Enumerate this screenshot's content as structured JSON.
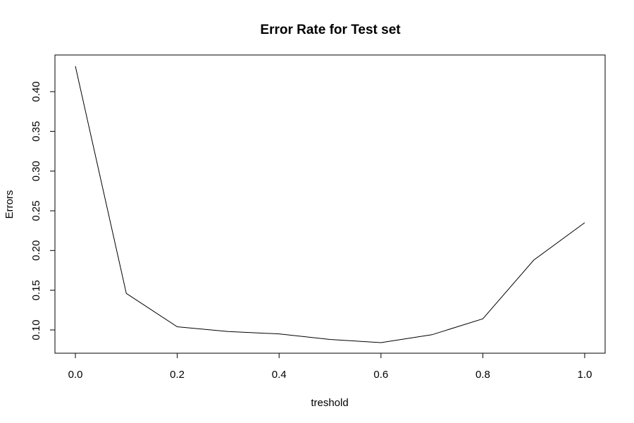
{
  "chart_data": {
    "type": "line",
    "title": "Error Rate for Test set",
    "xlabel": "treshold",
    "ylabel": "Errors",
    "x": [
      0.0,
      0.1,
      0.2,
      0.3,
      0.4,
      0.5,
      0.6,
      0.7,
      0.8,
      0.9,
      1.0
    ],
    "series": [
      {
        "values": [
          0.432,
          0.146,
          0.104,
          0.098,
          0.095,
          0.088,
          0.084,
          0.094,
          0.114,
          0.188,
          0.235
        ]
      }
    ],
    "xlim": [
      0.0,
      1.0
    ],
    "ylim": [
      0.1,
      0.4
    ],
    "x_ticks": [
      "0.0",
      "0.2",
      "0.4",
      "0.6",
      "0.8",
      "1.0"
    ],
    "y_ticks": [
      "0.10",
      "0.15",
      "0.20",
      "0.25",
      "0.30",
      "0.35",
      "0.40"
    ],
    "grid": false,
    "line_color": "#000000"
  }
}
